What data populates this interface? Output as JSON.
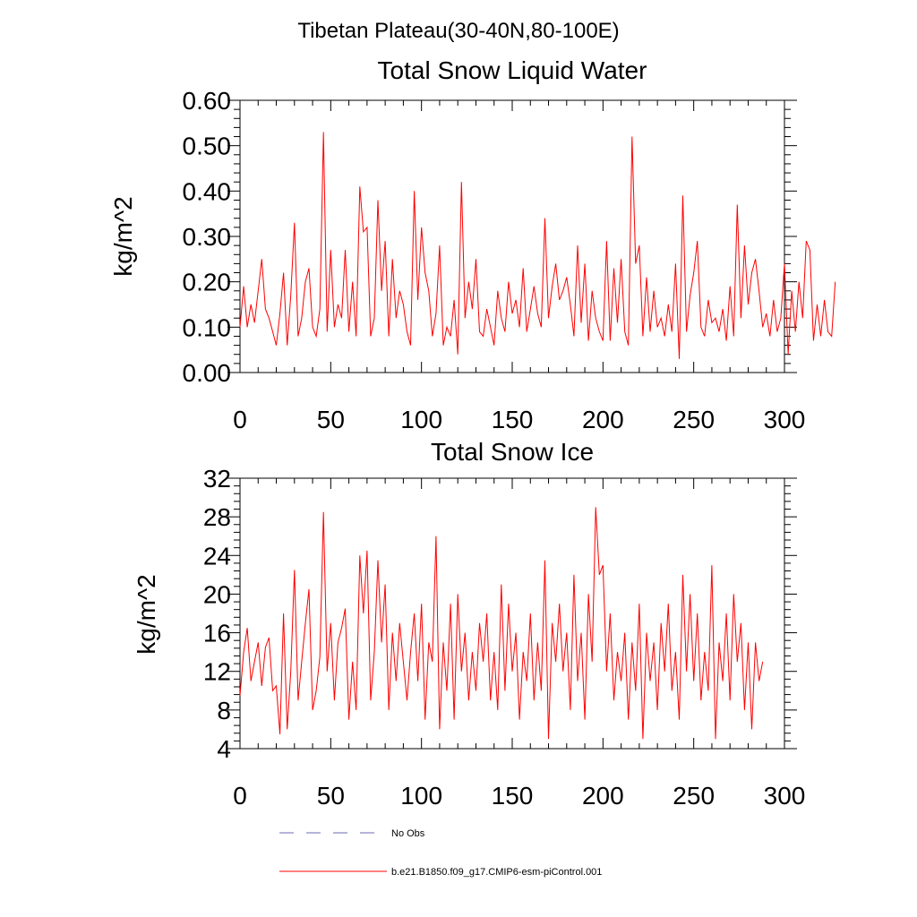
{
  "suptitle": "Tibetan Plateau(30-40N,80-100E)",
  "chart_data": [
    {
      "type": "line",
      "title": "Total Snow Liquid Water",
      "xlabel": "",
      "ylabel": "kg/m^2",
      "xlim": [
        0,
        300
      ],
      "ylim": [
        0.0,
        0.6
      ],
      "xticks": [
        0,
        50,
        100,
        150,
        200,
        250,
        300
      ],
      "xtick_labels": [
        "0",
        "50",
        "100",
        "150",
        "200",
        "250",
        "300"
      ],
      "yticks": [
        0.0,
        0.1,
        0.2,
        0.3,
        0.4,
        0.5,
        0.6
      ],
      "ytick_labels": [
        "0.00",
        "0.10",
        "0.20",
        "0.30",
        "0.40",
        "0.50",
        "0.60"
      ],
      "series": [
        {
          "name": "b.e21.B1850.f09_g17.CMIP6-esm-piControl.001",
          "color": "#ff0000",
          "x_start": 0,
          "x_step": 2,
          "values": [
            0.1,
            0.19,
            0.1,
            0.15,
            0.11,
            0.18,
            0.25,
            0.14,
            0.12,
            0.09,
            0.06,
            0.13,
            0.22,
            0.06,
            0.17,
            0.33,
            0.08,
            0.12,
            0.2,
            0.23,
            0.1,
            0.08,
            0.14,
            0.53,
            0.09,
            0.27,
            0.1,
            0.15,
            0.12,
            0.27,
            0.09,
            0.2,
            0.08,
            0.41,
            0.31,
            0.32,
            0.08,
            0.12,
            0.38,
            0.18,
            0.29,
            0.08,
            0.25,
            0.12,
            0.18,
            0.15,
            0.09,
            0.06,
            0.4,
            0.16,
            0.32,
            0.22,
            0.18,
            0.08,
            0.13,
            0.28,
            0.06,
            0.1,
            0.08,
            0.16,
            0.04,
            0.42,
            0.12,
            0.2,
            0.14,
            0.25,
            0.09,
            0.08,
            0.14,
            0.1,
            0.06,
            0.18,
            0.12,
            0.09,
            0.2,
            0.13,
            0.16,
            0.1,
            0.23,
            0.09,
            0.14,
            0.19,
            0.13,
            0.1,
            0.34,
            0.12,
            0.19,
            0.24,
            0.16,
            0.18,
            0.21,
            0.15,
            0.08,
            0.28,
            0.11,
            0.24,
            0.07,
            0.18,
            0.12,
            0.09,
            0.07,
            0.29,
            0.07,
            0.23,
            0.11,
            0.25,
            0.09,
            0.06,
            0.52,
            0.24,
            0.28,
            0.08,
            0.21,
            0.09,
            0.18,
            0.1,
            0.12,
            0.08,
            0.15,
            0.09,
            0.24,
            0.03,
            0.39,
            0.09,
            0.17,
            0.22,
            0.29,
            0.1,
            0.08,
            0.16,
            0.11,
            0.12,
            0.09,
            0.14,
            0.07,
            0.19,
            0.08,
            0.37,
            0.12,
            0.28,
            0.15,
            0.22,
            0.25,
            0.18,
            0.1,
            0.13,
            0.08,
            0.16,
            0.09,
            0.12,
            0.24,
            0.04,
            0.18,
            0.09,
            0.2,
            0.12,
            0.29,
            0.27,
            0.07,
            0.15,
            0.08,
            0.16,
            0.09,
            0.08,
            0.2
          ]
        }
      ]
    },
    {
      "type": "line",
      "title": "Total Snow Ice",
      "xlabel": "",
      "ylabel": "kg/m^2",
      "xlim": [
        0,
        300
      ],
      "ylim": [
        4,
        32
      ],
      "xticks": [
        0,
        50,
        100,
        150,
        200,
        250,
        300
      ],
      "xtick_labels": [
        "0",
        "50",
        "100",
        "150",
        "200",
        "250",
        "300"
      ],
      "yticks": [
        4,
        8,
        12,
        16,
        20,
        24,
        28,
        32
      ],
      "ytick_labels": [
        "4",
        "8",
        "12",
        "16",
        "20",
        "24",
        "28",
        "32"
      ],
      "series": [
        {
          "name": "b.e21.B1850.f09_g17.CMIP6-esm-piControl.001",
          "color": "#ff0000",
          "x_start": 0,
          "x_step": 2,
          "values": [
            9.5,
            14,
            16.5,
            11,
            13,
            15,
            10.5,
            14.5,
            15.5,
            10,
            10.5,
            5.5,
            18,
            6,
            12,
            22.5,
            9,
            13,
            17,
            20.5,
            8,
            10,
            13.5,
            28.5,
            12,
            17,
            9,
            15,
            16.5,
            18.5,
            7,
            13,
            8,
            24,
            18,
            24.5,
            9,
            14,
            23.5,
            15,
            21,
            8,
            16,
            11,
            17,
            13,
            9,
            14,
            18,
            11,
            19,
            7,
            15,
            13,
            26,
            6,
            15,
            10,
            19,
            7,
            20,
            12,
            16,
            9,
            14,
            10,
            17,
            13,
            18,
            9,
            14,
            8,
            21,
            10,
            19,
            12,
            16,
            7,
            14,
            11,
            18,
            9,
            15,
            10,
            23.5,
            5,
            17,
            13,
            19,
            12,
            16,
            8,
            22,
            11,
            16,
            7,
            20,
            13,
            29,
            22,
            23,
            12,
            18,
            9,
            14,
            11,
            16,
            7,
            15,
            10,
            19,
            5,
            16,
            11,
            15,
            8,
            17,
            12,
            19,
            10,
            14,
            7,
            22,
            12,
            20,
            11,
            18,
            9,
            14,
            10,
            23,
            5,
            15,
            11,
            18,
            9,
            20,
            13,
            17,
            8,
            15,
            6,
            15,
            11,
            13
          ]
        }
      ]
    }
  ],
  "legend": {
    "placement": "bottom-left",
    "entries": [
      {
        "label": "No Obs",
        "style": "dashed",
        "color": "#6b6bb5"
      },
      {
        "label": "b.e21.B1850.f09_g17.CMIP6-esm-piControl.001",
        "style": "solid",
        "color": "#ff0000"
      }
    ]
  }
}
